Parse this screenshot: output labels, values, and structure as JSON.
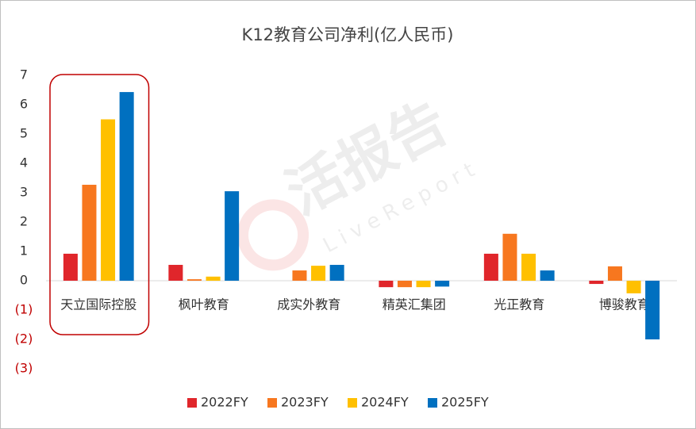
{
  "chart_data": {
    "type": "bar",
    "title": "K12教育公司净利(亿人民币)",
    "watermark": "活报告",
    "watermark_sub": "LiveReport",
    "categories": [
      "天立国际控股",
      "枫叶教育",
      "成实外教育",
      "精英汇集团",
      "光正教育",
      "博骏教育"
    ],
    "series": [
      {
        "name": "2022FY",
        "color": "#e0262b",
        "values": [
          0.92,
          0.54,
          0,
          -0.22,
          0.92,
          -0.11
        ]
      },
      {
        "name": "2023FY",
        "color": "#f7771f",
        "values": [
          3.27,
          0.05,
          0.35,
          -0.22,
          1.6,
          0.49
        ]
      },
      {
        "name": "2024FY",
        "color": "#ffc000",
        "values": [
          5.5,
          0.14,
          0.51,
          -0.22,
          0.92,
          -0.43
        ]
      },
      {
        "name": "2025FY",
        "color": "#0070c0",
        "values": [
          6.43,
          3.05,
          0.54,
          -0.2,
          0.35,
          -2.0
        ]
      }
    ],
    "ylim": [
      -3,
      7
    ],
    "yticks": [
      {
        "value": -3,
        "label": "(3)"
      },
      {
        "value": -2,
        "label": "(2)"
      },
      {
        "value": -1,
        "label": "(1)"
      },
      0,
      1,
      2,
      3,
      4,
      5,
      6,
      7
    ],
    "negative_label_color": "#c00000",
    "highlight_category": 0,
    "highlight_color": "#c00000",
    "legend": "bottom",
    "grid": false
  }
}
